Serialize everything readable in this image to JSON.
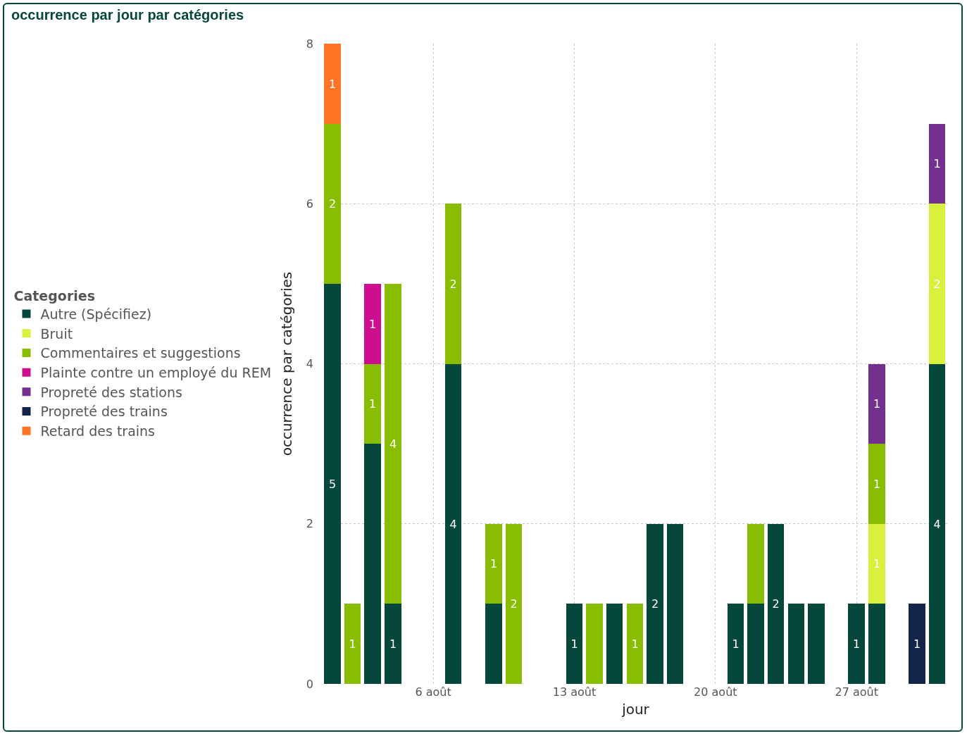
{
  "chart_data": {
    "type": "bar",
    "stacked": true,
    "title": "occurrence par jour par catégories",
    "xlabel": "jour",
    "ylabel": "occurrence par catégories",
    "legend_title": "Categories",
    "legend": "left",
    "grid": true,
    "x": [
      "--08-01",
      "--08-02",
      "--08-03",
      "--08-04",
      "--08-07",
      "--08-09",
      "--08-10",
      "--08-13",
      "--08-14",
      "--08-15",
      "--08-16",
      "--08-17",
      "--08-18",
      "--08-21",
      "--08-22",
      "--08-23",
      "--08-24",
      "--08-25",
      "--08-27",
      "--08-28",
      "--08-30",
      "--08-31"
    ],
    "xlim": [
      "--07-31T14:00",
      "--08-31T12:00"
    ],
    "xticks": [
      {
        "value": "--08-06",
        "label": "6 août"
      },
      {
        "value": "--08-13",
        "label": "13 août"
      },
      {
        "value": "--08-20",
        "label": "20 août"
      },
      {
        "value": "--08-27",
        "label": "27 août"
      }
    ],
    "ylim": [
      0,
      8
    ],
    "yticks": [
      0,
      2,
      4,
      6,
      8
    ],
    "series": [
      {
        "name": "Autre (Spécifiez)",
        "color": "#05473b",
        "values": [
          5,
          null,
          3,
          1,
          4,
          1,
          null,
          1,
          null,
          1,
          null,
          2,
          2,
          1,
          1,
          2,
          1,
          1,
          1,
          1,
          null,
          4
        ],
        "value_labels": [
          "5",
          null,
          null,
          "1",
          "4",
          null,
          null,
          "1",
          null,
          null,
          null,
          "2",
          null,
          "1",
          null,
          "2",
          null,
          null,
          "1",
          null,
          null,
          "4"
        ]
      },
      {
        "name": "Bruit",
        "color": "#d9f03c",
        "values": [
          null,
          null,
          null,
          null,
          null,
          null,
          null,
          null,
          null,
          null,
          null,
          null,
          null,
          null,
          null,
          null,
          null,
          null,
          null,
          1,
          null,
          2
        ],
        "value_labels": [
          null,
          null,
          null,
          null,
          null,
          null,
          null,
          null,
          null,
          null,
          null,
          null,
          null,
          null,
          null,
          null,
          null,
          null,
          null,
          "1",
          null,
          "2"
        ]
      },
      {
        "name": "Commentaires et suggestions",
        "color": "#88bd00",
        "values": [
          2,
          1,
          1,
          4,
          2,
          1,
          2,
          null,
          1,
          null,
          1,
          null,
          null,
          null,
          1,
          null,
          null,
          null,
          null,
          1,
          null,
          null
        ],
        "value_labels": [
          "2",
          "1",
          "1",
          "4",
          "2",
          "1",
          "2",
          null,
          null,
          null,
          "1",
          null,
          null,
          null,
          null,
          null,
          null,
          null,
          null,
          "1",
          null,
          null
        ]
      },
      {
        "name": "Plainte contre un employé du REM",
        "color": "#cc0e8f",
        "values": [
          null,
          null,
          1,
          null,
          null,
          null,
          null,
          null,
          null,
          null,
          null,
          null,
          null,
          null,
          null,
          null,
          null,
          null,
          null,
          null,
          null,
          null
        ],
        "value_labels": [
          null,
          null,
          "1",
          null,
          null,
          null,
          null,
          null,
          null,
          null,
          null,
          null,
          null,
          null,
          null,
          null,
          null,
          null,
          null,
          null,
          null,
          null
        ]
      },
      {
        "name": "Propreté des stations",
        "color": "#74308f",
        "values": [
          null,
          null,
          null,
          null,
          null,
          null,
          null,
          null,
          null,
          null,
          null,
          null,
          null,
          null,
          null,
          null,
          null,
          null,
          null,
          1,
          null,
          1
        ],
        "value_labels": [
          null,
          null,
          null,
          null,
          null,
          null,
          null,
          null,
          null,
          null,
          null,
          null,
          null,
          null,
          null,
          null,
          null,
          null,
          null,
          "1",
          null,
          "1"
        ]
      },
      {
        "name": "Propreté des trains",
        "color": "#13234a",
        "values": [
          null,
          null,
          null,
          null,
          null,
          null,
          null,
          null,
          null,
          null,
          null,
          null,
          null,
          null,
          null,
          null,
          null,
          null,
          null,
          null,
          1,
          null
        ],
        "value_labels": [
          null,
          null,
          null,
          null,
          null,
          null,
          null,
          null,
          null,
          null,
          null,
          null,
          null,
          null,
          null,
          null,
          null,
          null,
          null,
          null,
          "1",
          null
        ]
      },
      {
        "name": "Retard des trains",
        "color": "#ff7324",
        "values": [
          1,
          null,
          null,
          null,
          null,
          null,
          null,
          null,
          null,
          null,
          null,
          null,
          null,
          null,
          null,
          null,
          null,
          null,
          null,
          null,
          null,
          null
        ],
        "value_labels": [
          "1",
          null,
          null,
          null,
          null,
          null,
          null,
          null,
          null,
          null,
          null,
          null,
          null,
          null,
          null,
          null,
          null,
          null,
          null,
          null,
          null,
          null
        ]
      }
    ]
  }
}
